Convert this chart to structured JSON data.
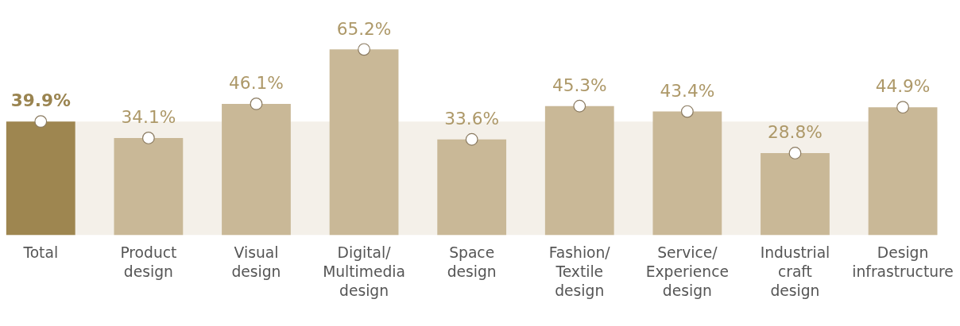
{
  "chart_data": {
    "type": "bar",
    "categories": [
      "Total",
      "Product design",
      "Visual design",
      "Digital/ Multimedia design",
      "Space design",
      "Fashion/ Textile design",
      "Service/ Experience design",
      "Industrial craft design",
      "Design infrastructure"
    ],
    "series": [
      {
        "values": [
          39.9,
          34.1,
          46.1,
          65.2,
          33.6,
          45.3,
          43.4,
          28.8,
          44.9
        ],
        "value_labels": [
          "39.9%",
          "34.1%",
          "46.1%",
          "65.2%",
          "33.6%",
          "45.3%",
          "43.4%",
          "28.8%",
          "44.9%"
        ],
        "colors": [
          "#9e8650",
          "#c9b897",
          "#c9b897",
          "#c9b897",
          "#c9b897",
          "#c9b897",
          "#c9b897",
          "#c9b897",
          "#c9b897"
        ]
      },
      {
        "type": "scatter",
        "x": [
          "Total",
          "Product design",
          "Visual design",
          "Digital/ Multimedia design",
          "Space design",
          "Fashion/ Textile design",
          "Service/ Experience design",
          "Industrial craft design",
          "Design infrastructure"
        ],
        "values": [
          39.9,
          34.1,
          46.1,
          65.2,
          33.6,
          45.3,
          43.4,
          28.8,
          44.9
        ],
        "color": "#ffffff",
        "marker": "circle"
      }
    ],
    "bands": [
      {
        "axis": "y",
        "from": 0,
        "to": 39.9,
        "color": "#f4f0e9"
      }
    ],
    "grid": false
  }
}
